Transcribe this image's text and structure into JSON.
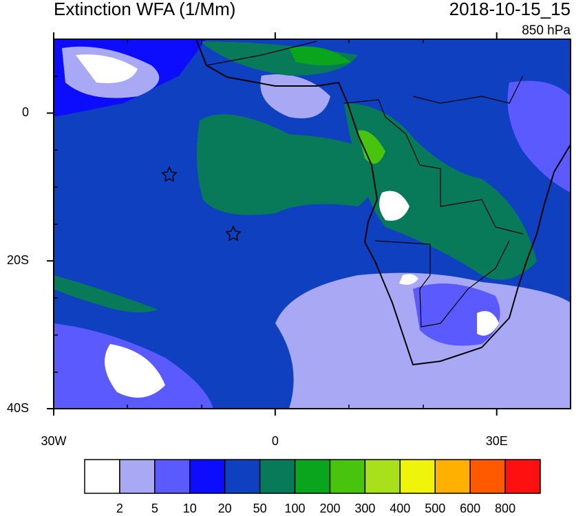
{
  "chart_data": {
    "type": "map",
    "title": "Extinction WFA (1/Mm)",
    "date": "2018-10-15_15",
    "level": "850 hPa",
    "xlim": [
      -30,
      40
    ],
    "ylim": [
      -40,
      10
    ],
    "xticks": [
      {
        "value": -30,
        "label": "30W"
      },
      0,
      {
        "value": 30,
        "label": "30E"
      }
    ],
    "yticks": [
      0,
      {
        "value": -20,
        "label": "20S"
      },
      {
        "value": -40,
        "label": "40S"
      }
    ],
    "colorbar": {
      "levels": [
        2,
        5,
        10,
        20,
        50,
        100,
        200,
        300,
        400,
        500,
        600,
        800
      ],
      "colors": [
        "#ffffff",
        "#a8a8f5",
        "#5a5aff",
        "#0c0cff",
        "#0e40c0",
        "#087a5a",
        "#0aa51c",
        "#48c40e",
        "#a8e01c",
        "#eef50a",
        "#ffb000",
        "#ff5a00",
        "#ff1010"
      ]
    }
  }
}
